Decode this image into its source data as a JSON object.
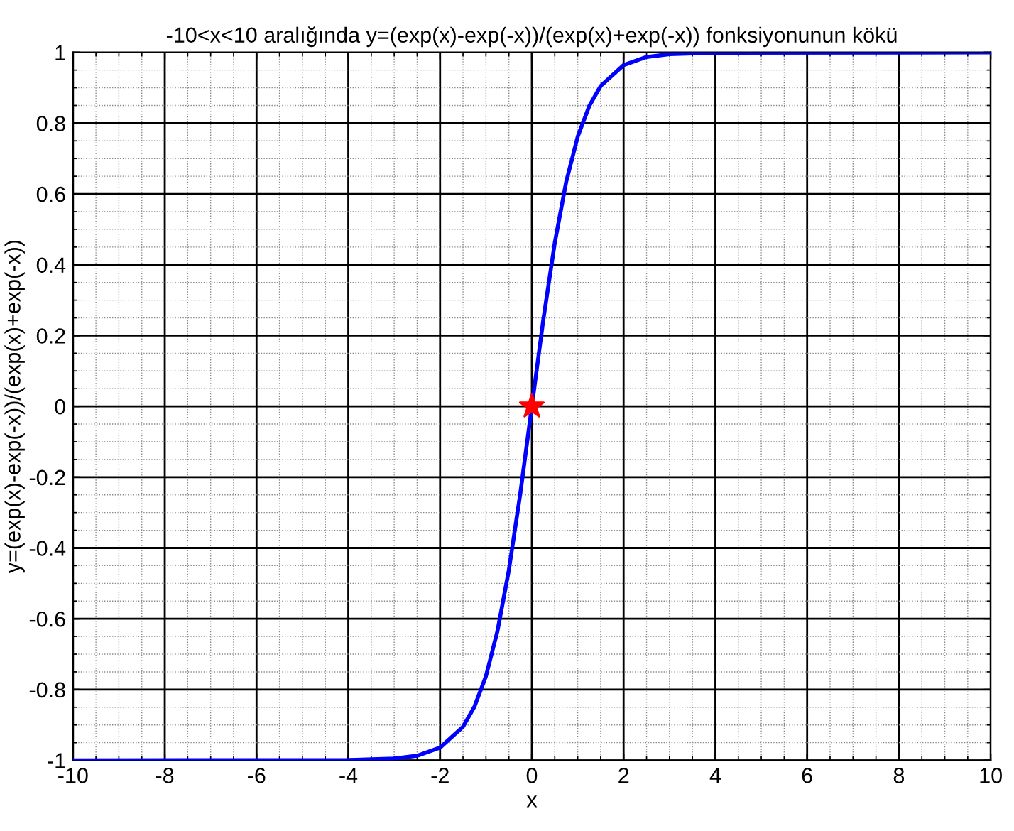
{
  "chart_data": {
    "type": "line",
    "title": "-10<x<10 aralığında y=(exp(x)-exp(-x))/(exp(x)+exp(-x)) fonksiyonunun kökü",
    "xlabel": "x",
    "ylabel": "y=(exp(x)-exp(-x))/(exp(x)+exp(-x))",
    "xlim": [
      -10,
      10
    ],
    "ylim": [
      -1,
      1
    ],
    "xticks": [
      -10,
      -8,
      -6,
      -4,
      -2,
      0,
      2,
      4,
      6,
      8,
      10
    ],
    "yticks": [
      -1,
      -0.8,
      -0.6,
      -0.4,
      -0.2,
      0,
      0.2,
      0.4,
      0.6,
      0.8,
      1
    ],
    "grid": true,
    "series": [
      {
        "color": "#0000ff",
        "marker": "none",
        "line_style": "solid",
        "x": [
          -10,
          -4,
          -3,
          -2.5,
          -2,
          -1.5,
          -1.25,
          -1,
          -0.75,
          -0.5,
          -0.25,
          0,
          0.25,
          0.5,
          0.75,
          1,
          1.25,
          1.5,
          2,
          2.5,
          3,
          4,
          10
        ],
        "values": [
          -1,
          -0.999,
          -0.995,
          -0.987,
          -0.964,
          -0.905,
          -0.848,
          -0.762,
          -0.635,
          -0.462,
          -0.245,
          0,
          0.245,
          0.462,
          0.635,
          0.762,
          0.848,
          0.905,
          0.964,
          0.987,
          0.995,
          0.999,
          1
        ]
      },
      {
        "type": "scatter",
        "color": "#ff0000",
        "marker": "star",
        "x": [
          0
        ],
        "values": [
          0
        ]
      }
    ]
  }
}
